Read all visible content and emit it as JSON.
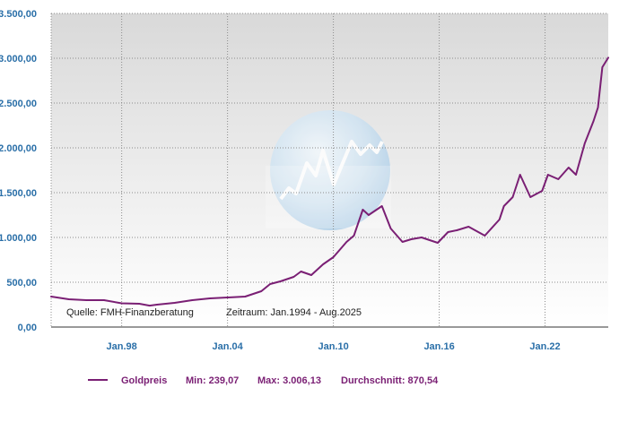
{
  "chart_data": {
    "type": "line",
    "x_range": [
      "1994-01",
      "2025-08"
    ],
    "ylim": [
      0,
      3500
    ],
    "y_ticks": [
      "0,00",
      "500,00",
      "1.000,00",
      "1.500,00",
      "2.000,00",
      "2.500,00",
      "3.000,00",
      "3.500,00"
    ],
    "y_tick_values": [
      0,
      500,
      1000,
      1500,
      2000,
      2500,
      3000,
      3500
    ],
    "x_ticks": [
      "Jan.98",
      "Jan.04",
      "Jan.10",
      "Jan.16",
      "Jan.22"
    ],
    "x_tick_values": [
      "1998-01",
      "2004-01",
      "2010-01",
      "2016-01",
      "2022-01"
    ],
    "grid": true,
    "series": [
      {
        "name": "Goldpreis",
        "color": "#7a1f74",
        "x": [
          "1994-01",
          "1995-01",
          "1996-01",
          "1997-01",
          "1998-01",
          "1999-01",
          "1999-08",
          "2000-01",
          "2001-01",
          "2002-01",
          "2003-01",
          "2004-01",
          "2005-01",
          "2005-12",
          "2006-06",
          "2007-01",
          "2007-10",
          "2008-03",
          "2008-10",
          "2009-06",
          "2010-01",
          "2010-10",
          "2011-03",
          "2011-09",
          "2012-01",
          "2012-10",
          "2013-04",
          "2013-12",
          "2014-06",
          "2015-01",
          "2015-12",
          "2016-07",
          "2017-01",
          "2017-09",
          "2018-08",
          "2019-06",
          "2019-09",
          "2020-03",
          "2020-08",
          "2021-03",
          "2021-11",
          "2022-03",
          "2022-10",
          "2023-05",
          "2023-10",
          "2024-04",
          "2024-10",
          "2025-01",
          "2025-04",
          "2025-08"
        ],
        "y": [
          340,
          310,
          300,
          300,
          265,
          260,
          239.07,
          250,
          270,
          300,
          320,
          330,
          340,
          400,
          480,
          510,
          560,
          620,
          580,
          700,
          780,
          950,
          1020,
          1310,
          1250,
          1350,
          1100,
          950,
          980,
          1000,
          940,
          1060,
          1080,
          1120,
          1020,
          1200,
          1350,
          1450,
          1700,
          1450,
          1520,
          1700,
          1650,
          1780,
          1700,
          2050,
          2300,
          2450,
          2900,
          3006.13
        ]
      }
    ],
    "legend": {
      "series_label": "Goldpreis",
      "min_text": "Min: 239,07",
      "max_text": "Max: 3.006,13",
      "avg_text": "Durchschnitt: 870,54",
      "position": "bottom"
    },
    "annotations": {
      "source": "Quelle: FMH-Finanzberatung",
      "period": "Zeitraum: Jan.1994 - Aug.2025"
    }
  }
}
